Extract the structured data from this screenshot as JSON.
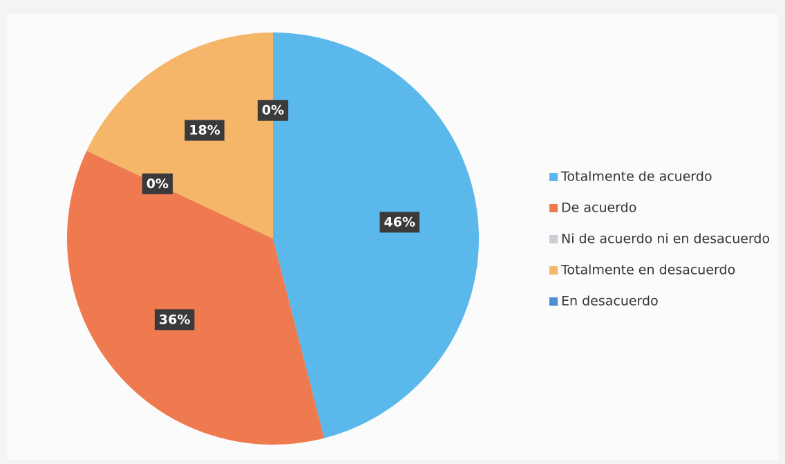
{
  "chart_data": {
    "type": "pie",
    "categories": [
      "Totalmente de acuerdo",
      "De acuerdo",
      "Ni de acuerdo ni en desacuerdo",
      "Totalmente en desacuerdo",
      "En desacuerdo"
    ],
    "values": [
      46,
      36,
      0,
      18,
      0
    ],
    "value_labels": [
      "46%",
      "36%",
      "0%",
      "18%",
      "0%"
    ],
    "colors": [
      "#5bb8ea",
      "#f07a50",
      "#c9cdd4",
      "#f6b66a",
      "#4a8fd8"
    ],
    "legend": "right"
  }
}
